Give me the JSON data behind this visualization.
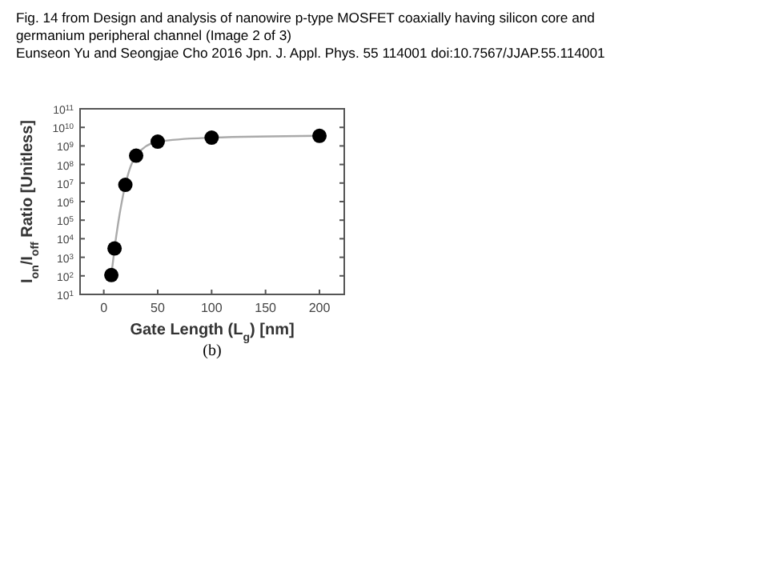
{
  "chart_data": {
    "type": "line",
    "title": "Fig. 14 from Design and analysis of nanowire p-type MOSFET coaxially having silicon core and germanium peripheral channel (Image 2 of 3)",
    "subtitle": "Eunseon Yu and Seongjae Cho 2016 Jpn. J. Appl. Phys. 55 114001 doi:10.7567/JJAP.55.114001",
    "xlabel": "Gate Length (L$_{g}$) [nm]",
    "ylabel": "I$_{on}$/I$_{off}$ Ratio [Unitless]",
    "annotations": [
      "(b)"
    ],
    "x": [
      7,
      10,
      20,
      30,
      50,
      100,
      200
    ],
    "series": [
      {
        "color": "#aaaaaa",
        "marker": "none",
        "values": [
          110,
          3000,
          8000000,
          300000000,
          1700000000,
          2800000000,
          3500000000
        ]
      },
      {
        "type": "scatter",
        "color": "#000000",
        "marker": "circle",
        "values": [
          110,
          3000,
          8000000,
          300000000,
          1700000000,
          2800000000,
          3500000000
        ]
      }
    ],
    "log": "y",
    "xlim": [
      -22,
      223
    ],
    "xticks": [
      0,
      50,
      100,
      150,
      200
    ],
    "ylim": [
      10,
      100000000000
    ],
    "yticks": [
      {
        "value": 10,
        "label": "10$^{1}$"
      },
      {
        "value": 100,
        "label": "10$^{2}$"
      },
      {
        "value": 1000,
        "label": "10$^{3}$"
      },
      {
        "value": 10000,
        "label": "10$^{4}$"
      },
      {
        "value": 100000,
        "label": "10$^{5}$"
      },
      {
        "value": 1000000,
        "label": "10$^{6}$"
      },
      {
        "value": 10000000,
        "label": "10$^{7}$"
      },
      {
        "value": 100000000,
        "label": "10$^{8}$"
      },
      {
        "value": 1000000000,
        "label": "10$^{9}$"
      },
      {
        "value": 10000000000,
        "label": "10$^{10}$"
      },
      {
        "value": 100000000000,
        "label": "10$^{11}$"
      }
    ],
    "grid": false
  }
}
